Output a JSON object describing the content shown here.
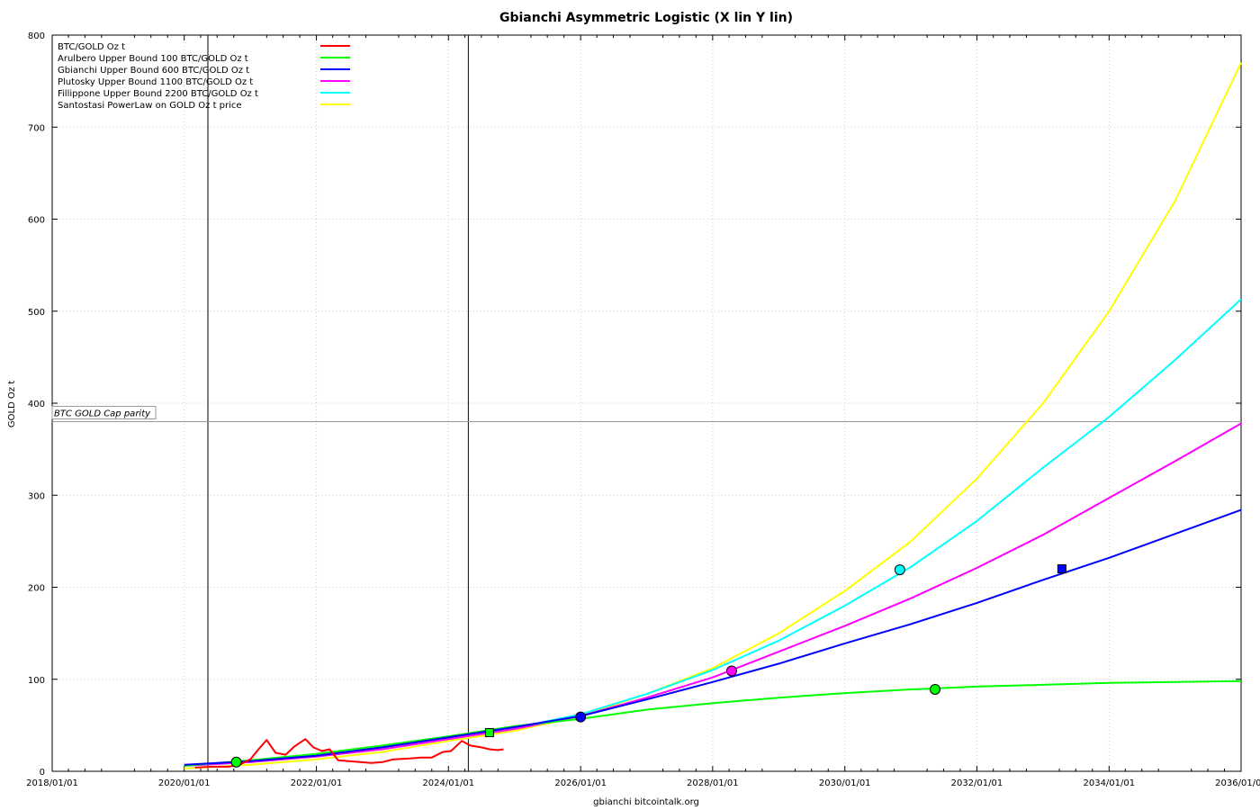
{
  "chart_data": {
    "type": "line",
    "title": "Gbianchi Asymmetric Logistic (X lin Y lin)",
    "xlabel": "gbianchi bitcointalk.org",
    "ylabel": "GOLD Oz t",
    "x_ticks": [
      "2018/01/01",
      "2020/01/01",
      "2022/01/01",
      "2024/01/01",
      "2026/01/01",
      "2028/01/01",
      "2030/01/01",
      "2032/01/01",
      "2034/01/01",
      "2036/01/01"
    ],
    "xlim": [
      "2018/01/01",
      "2036/01/01"
    ],
    "ylim": [
      0,
      800
    ],
    "y_ticks": [
      0,
      100,
      200,
      300,
      400,
      500,
      600,
      700,
      800
    ],
    "grid": true,
    "legend_position": "top-left",
    "vertical_lines": [
      "2020/05/11",
      "2024/04/20"
    ],
    "horizontal_line": {
      "y": 380,
      "label": "BTC GOLD Cap parity"
    },
    "series": [
      {
        "name": "BTC/GOLD Oz t",
        "color": "#ff0000",
        "x": [
          "2020/03/01",
          "2020/06/01",
          "2020/09/01",
          "2020/11/01",
          "2021/01/01",
          "2021/02/15",
          "2021/04/01",
          "2021/05/20",
          "2021/07/15",
          "2021/09/01",
          "2021/11/01",
          "2021/12/15",
          "2022/02/01",
          "2022/03/15",
          "2022/05/01",
          "2022/07/01",
          "2022/09/01",
          "2022/11/01",
          "2023/01/01",
          "2023/03/01",
          "2023/06/01",
          "2023/08/01",
          "2023/10/01",
          "2023/12/01",
          "2024/01/15",
          "2024/03/15",
          "2024/05/01",
          "2024/07/01",
          "2024/08/15",
          "2024/10/01",
          "2024/10/31"
        ],
        "y": [
          4,
          5,
          5,
          7,
          13,
          24,
          34,
          20,
          18,
          27,
          35,
          26,
          22,
          24,
          12,
          11,
          10,
          9,
          10,
          13,
          14,
          15,
          15,
          21,
          22,
          33,
          28,
          26,
          24,
          23,
          24
        ]
      },
      {
        "name": "Arulbero Upper Bound 100  BTC/GOLD Oz t",
        "color": "#00ff00",
        "x": [
          "2020/01/01",
          "2021/01/01",
          "2022/01/01",
          "2023/01/01",
          "2024/01/01",
          "2025/01/01",
          "2026/01/01",
          "2027/01/01",
          "2028/01/01",
          "2029/01/01",
          "2030/01/01",
          "2031/01/01",
          "2032/01/01",
          "2033/01/01",
          "2034/01/01",
          "2035/01/01",
          "2036/01/01"
        ],
        "y": [
          6,
          12,
          19,
          28,
          38,
          49,
          57,
          67,
          74,
          80,
          85,
          89,
          92,
          94,
          96,
          97,
          98
        ]
      },
      {
        "name": "Gbianchi Upper Bound 600  BTC/GOLD Oz t",
        "color": "#0000ff",
        "x": [
          "2020/01/01",
          "2021/01/01",
          "2022/01/01",
          "2023/01/01",
          "2024/01/01",
          "2025/01/01",
          "2026/01/01",
          "2027/01/01",
          "2028/01/01",
          "2029/01/01",
          "2030/01/01",
          "2031/01/01",
          "2032/01/01",
          "2033/01/01",
          "2034/01/01",
          "2035/01/01",
          "2036/01/01"
        ],
        "y": [
          7,
          11,
          17,
          26,
          37,
          48,
          60,
          78,
          97,
          117,
          139,
          160,
          183,
          208,
          232,
          258,
          284
        ]
      },
      {
        "name": "Plutosky Upper Bound 1100  BTC/GOLD Oz t",
        "color": "#ff00ff",
        "x": [
          "2020/01/01",
          "2021/01/01",
          "2022/01/01",
          "2023/01/01",
          "2024/01/01",
          "2025/01/01",
          "2026/01/01",
          "2027/01/01",
          "2028/01/01",
          "2029/01/01",
          "2030/01/01",
          "2031/01/01",
          "2032/01/01",
          "2033/01/01",
          "2034/01/01",
          "2035/01/01",
          "2036/01/01"
        ],
        "y": [
          6,
          10,
          16,
          24,
          35,
          46,
          60,
          80,
          102,
          130,
          158,
          188,
          221,
          257,
          297,
          337,
          378
        ]
      },
      {
        "name": "Fillippone Upper Bound 2200  BTC/GOLD Oz t",
        "color": "#00ffff",
        "x": [
          "2020/01/01",
          "2021/01/01",
          "2022/01/01",
          "2023/01/01",
          "2024/01/01",
          "2025/01/01",
          "2026/01/01",
          "2027/01/01",
          "2028/01/01",
          "2029/01/01",
          "2030/01/01",
          "2031/01/01",
          "2032/01/01",
          "2033/01/01",
          "2034/01/01",
          "2035/01/01",
          "2036/01/01"
        ],
        "y": [
          6,
          10,
          16,
          24,
          35,
          47,
          62,
          84,
          110,
          142,
          180,
          222,
          272,
          330,
          385,
          447,
          513
        ]
      },
      {
        "name": "Santostasi PowerLaw on GOLD Oz t price",
        "color": "#ffff00",
        "x": [
          "2020/01/01",
          "2021/01/01",
          "2022/01/01",
          "2023/01/01",
          "2024/01/01",
          "2025/01/01",
          "2026/01/01",
          "2027/01/01",
          "2028/01/01",
          "2029/01/01",
          "2030/01/01",
          "2031/01/01",
          "2032/01/01",
          "2033/01/01",
          "2034/01/01",
          "2035/01/01",
          "2036/01/01"
        ],
        "y": [
          3,
          7,
          13,
          21,
          33,
          44,
          60,
          84,
          112,
          150,
          196,
          250,
          318,
          400,
          500,
          620,
          770
        ]
      }
    ],
    "markers": [
      {
        "shape": "circle",
        "color": "#00ff00",
        "x": "2020/10/15",
        "y": 10
      },
      {
        "shape": "square",
        "color": "#00ff00",
        "x": "2024/08/15",
        "y": 42
      },
      {
        "shape": "circle",
        "color": "#0000ff",
        "x": "2026/01/01",
        "y": 59
      },
      {
        "shape": "circle",
        "color": "#ff00ff",
        "x": "2028/04/15",
        "y": 109
      },
      {
        "shape": "circle",
        "color": "#00ffff",
        "x": "2030/11/01",
        "y": 219
      },
      {
        "shape": "circle",
        "color": "#00ff00",
        "x": "2031/05/15",
        "y": 89
      },
      {
        "shape": "square",
        "color": "#0000ff",
        "x": "2033/04/15",
        "y": 220
      }
    ]
  }
}
